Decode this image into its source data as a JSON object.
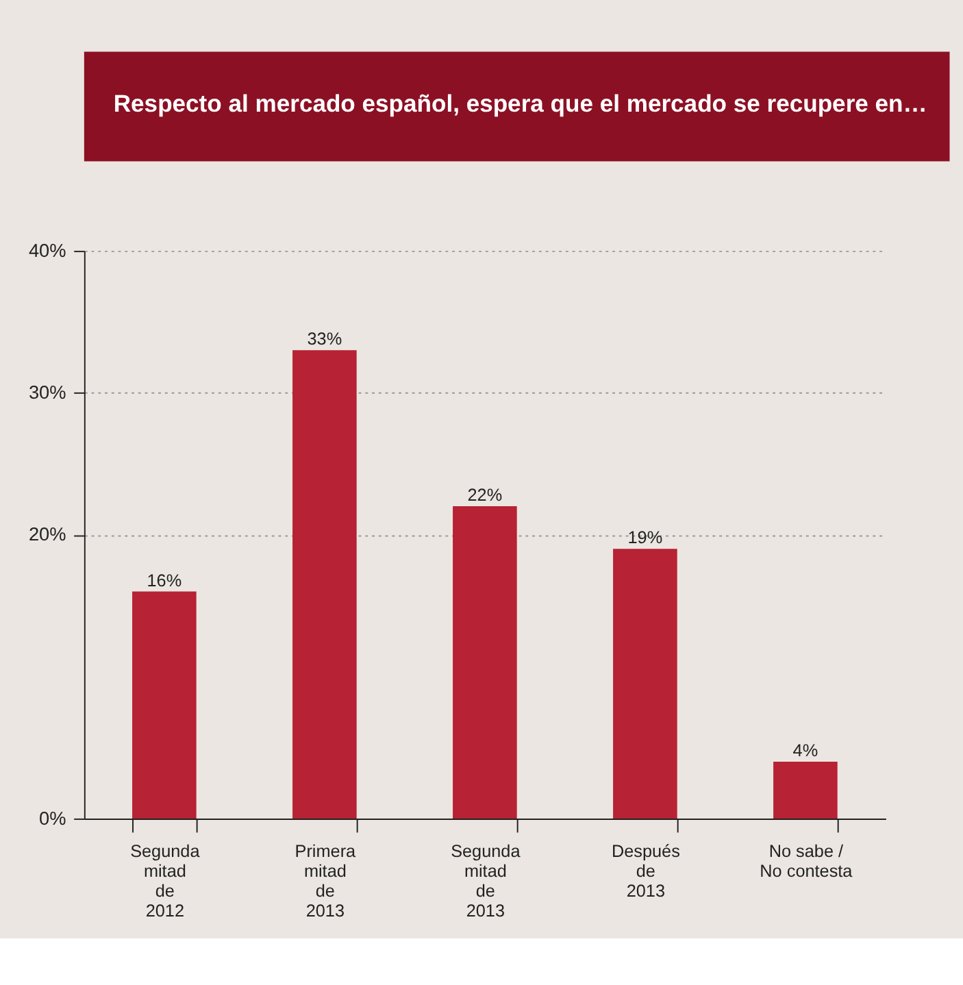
{
  "chart_data": {
    "type": "bar",
    "title": "Respecto al mercado español, espera que el mercado se recupere en…",
    "categories": [
      "Segunda\nmitad\nde\n2012",
      "Primera\nmitad\nde\n2013",
      "Segunda\nmitad\nde\n2013",
      "Después\nde\n2013",
      "No sabe /\nNo contesta"
    ],
    "values": [
      16,
      33,
      22,
      19,
      4
    ],
    "color": "#b72234",
    "ylim": [
      0,
      40
    ],
    "yticks": [
      {
        "value": 0,
        "label": "0%"
      },
      {
        "value": 20,
        "label": "20%"
      },
      {
        "value": 30,
        "label": "30%"
      },
      {
        "value": 40,
        "label": "40%"
      }
    ],
    "grid": "y",
    "value_labels": [
      "16%",
      "33%",
      "22%",
      "19%",
      "4%"
    ]
  }
}
